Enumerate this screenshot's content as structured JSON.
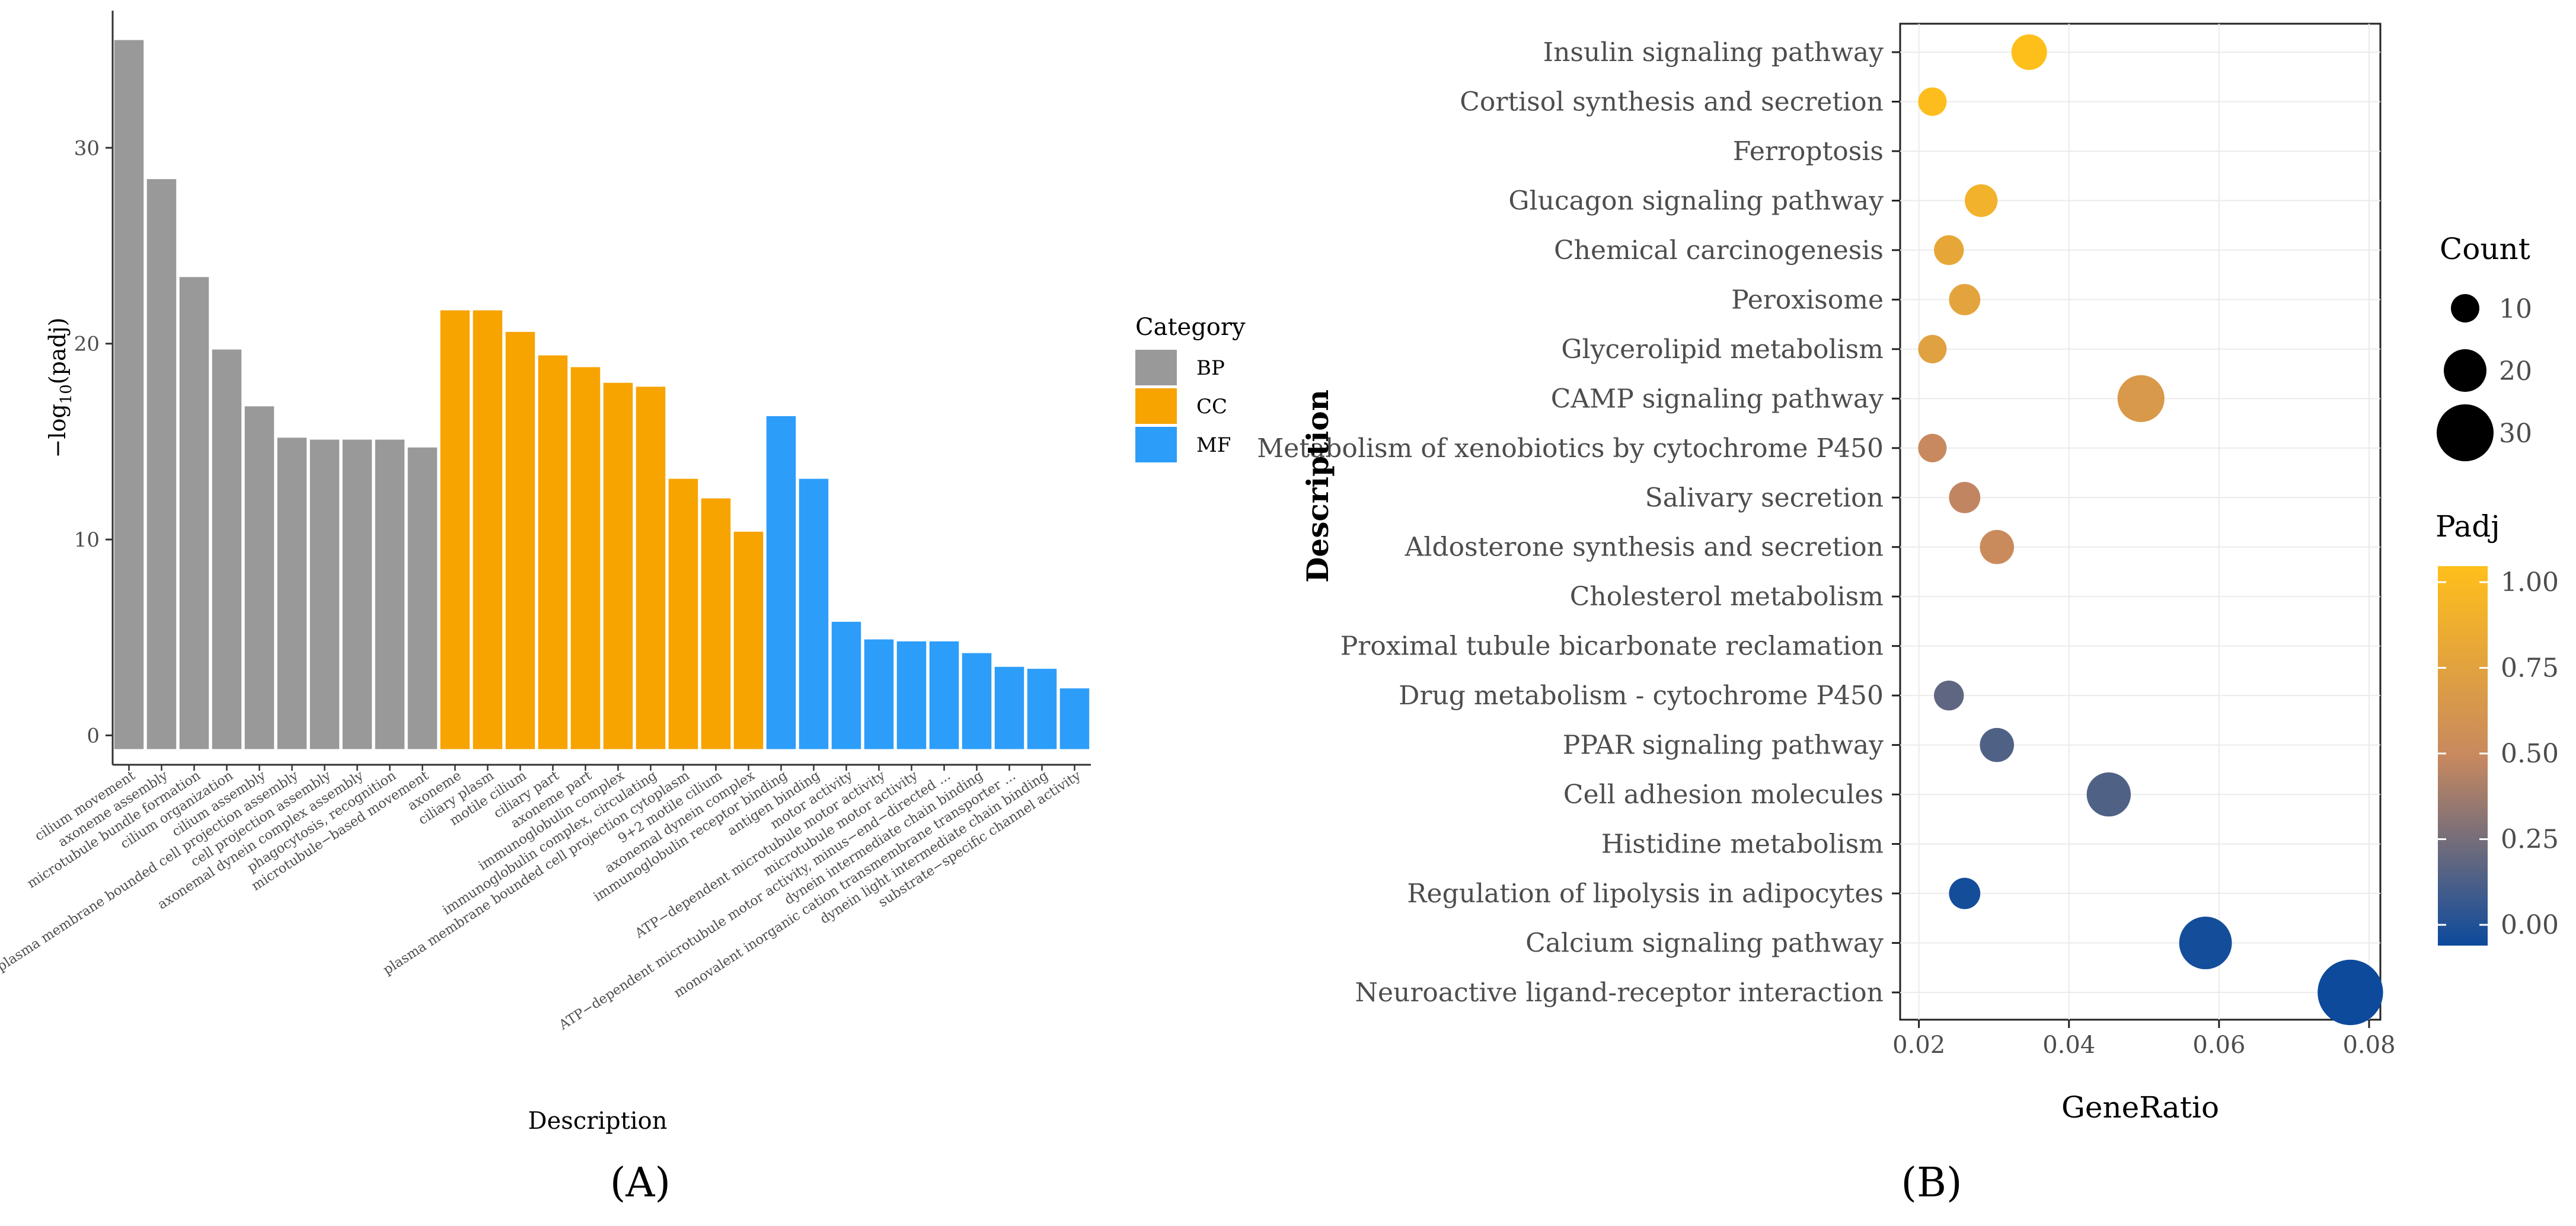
{
  "panel_labels": [
    "(A)",
    "(B)"
  ],
  "chart_data": [
    {
      "type": "bar",
      "panel": "A",
      "title": "",
      "xlabel": "Description",
      "ylabel": "-log10(padj)",
      "ylabel_main": "−log",
      "ylabel_sub": "10",
      "ylabel_tail": "(padj)",
      "ylim": [
        -1.5,
        37
      ],
      "yticks": [
        0,
        10,
        20,
        30
      ],
      "legend_title": "Category",
      "legend_position": "right",
      "categories_legend": [
        {
          "name": "BP",
          "color": "#999999"
        },
        {
          "name": "CC",
          "color": "#f7a300"
        },
        {
          "name": "MF",
          "color": "#2d9dfa"
        }
      ],
      "bars": [
        {
          "label": "cilium movement",
          "value": 35.5,
          "category": "BP"
        },
        {
          "label": "axoneme assembly",
          "value": 28.4,
          "category": "BP"
        },
        {
          "label": "microtubule bundle formation",
          "value": 23.4,
          "category": "BP"
        },
        {
          "label": "cilium organization",
          "value": 19.7,
          "category": "BP"
        },
        {
          "label": "cilium assembly",
          "value": 16.8,
          "category": "BP"
        },
        {
          "label": "plasma membrane bounded cell projection assembly",
          "value": 15.2,
          "category": "BP"
        },
        {
          "label": "cell projection assembly",
          "value": 15.1,
          "category": "BP"
        },
        {
          "label": "axonemal dynein complex assembly",
          "value": 15.1,
          "category": "BP"
        },
        {
          "label": "phagocytosis, recognition",
          "value": 15.1,
          "category": "BP"
        },
        {
          "label": "microtubule−based movement",
          "value": 14.7,
          "category": "BP"
        },
        {
          "label": "axoneme",
          "value": 21.7,
          "category": "CC"
        },
        {
          "label": "ciliary plasm",
          "value": 21.7,
          "category": "CC"
        },
        {
          "label": "motile cilium",
          "value": 20.6,
          "category": "CC"
        },
        {
          "label": "ciliary part",
          "value": 19.4,
          "category": "CC"
        },
        {
          "label": "axoneme part",
          "value": 18.8,
          "category": "CC"
        },
        {
          "label": "immunoglobulin complex",
          "value": 18.0,
          "category": "CC"
        },
        {
          "label": "immunoglobulin complex, circulating",
          "value": 17.8,
          "category": "CC"
        },
        {
          "label": "plasma membrane bounded cell projection cytoplasm",
          "value": 13.1,
          "category": "CC"
        },
        {
          "label": "9+2 motile cilium",
          "value": 12.1,
          "category": "CC"
        },
        {
          "label": "axonemal dynein complex",
          "value": 10.4,
          "category": "CC"
        },
        {
          "label": "immunoglobulin receptor binding",
          "value": 16.3,
          "category": "MF"
        },
        {
          "label": "antigen binding",
          "value": 13.1,
          "category": "MF"
        },
        {
          "label": "motor activity",
          "value": 5.8,
          "category": "MF"
        },
        {
          "label": "ATP−dependent microtubule motor activity",
          "value": 4.9,
          "category": "MF"
        },
        {
          "label": "microtubule motor activity",
          "value": 4.8,
          "category": "MF"
        },
        {
          "label": "ATP−dependent microtubule motor activity, minus−end−directed ...",
          "value": 4.8,
          "category": "MF"
        },
        {
          "label": "dynein intermediate chain binding",
          "value": 4.2,
          "category": "MF"
        },
        {
          "label": "monovalent inorganic cation transmembrane transporter ...",
          "value": 3.5,
          "category": "MF"
        },
        {
          "label": "dynein light intermediate chain binding",
          "value": 3.4,
          "category": "MF"
        },
        {
          "label": "substrate−specific channel activity",
          "value": 2.4,
          "category": "MF"
        }
      ]
    },
    {
      "type": "scatter",
      "panel": "B",
      "title": "",
      "xlabel": "GeneRatio",
      "ylabel": "Description",
      "xlim": [
        0.0175,
        0.0815
      ],
      "xticks": [
        0.02,
        0.04,
        0.06,
        0.08
      ],
      "xtick_labels": [
        "0.02",
        "0.04",
        "0.06",
        "0.08"
      ],
      "size_legend_title": "Count",
      "size_legend": [
        10,
        20,
        30
      ],
      "color_legend_title": "Padj",
      "color_legend_ticks": [
        "1.00",
        "0.75",
        "0.50",
        "0.25",
        "0.00"
      ],
      "color_legend_values": [
        1.0,
        0.75,
        0.5,
        0.25,
        0.0
      ],
      "color_scale": {
        "low": "#0d4a9c",
        "mid": "#c8895f",
        "high": "#ffbf1a"
      },
      "legend_position": "right",
      "terms": [
        {
          "label": "Insulin signaling pathway",
          "gene_ratio": 0.0347,
          "count": 15,
          "padj": 1.0
        },
        {
          "label": "Cortisol synthesis and secretion",
          "gene_ratio": 0.0218,
          "count": 10,
          "padj": 0.98
        },
        {
          "label": "Ferroptosis",
          "gene_ratio": null,
          "count": null,
          "padj": null
        },
        {
          "label": "Glucagon signaling pathway",
          "gene_ratio": 0.0283,
          "count": 13,
          "padj": 0.88
        },
        {
          "label": "Chemical carcinogenesis",
          "gene_ratio": 0.024,
          "count": 11,
          "padj": 0.78
        },
        {
          "label": "Peroxisome",
          "gene_ratio": 0.0261,
          "count": 12,
          "padj": 0.75
        },
        {
          "label": "Glycerolipid metabolism",
          "gene_ratio": 0.0218,
          "count": 10,
          "padj": 0.72
        },
        {
          "label": "CAMP signaling pathway",
          "gene_ratio": 0.0496,
          "count": 23,
          "padj": 0.65
        },
        {
          "label": "Metabolism of xenobiotics by cytochrome P450",
          "gene_ratio": 0.0218,
          "count": 10,
          "padj": 0.5
        },
        {
          "label": "Salivary secretion",
          "gene_ratio": 0.0261,
          "count": 12,
          "padj": 0.48
        },
        {
          "label": "Aldosterone synthesis and secretion",
          "gene_ratio": 0.0304,
          "count": 14,
          "padj": 0.52
        },
        {
          "label": "Cholesterol metabolism",
          "gene_ratio": null,
          "count": null,
          "padj": null
        },
        {
          "label": "Proximal tubule bicarbonate reclamation",
          "gene_ratio": null,
          "count": null,
          "padj": null
        },
        {
          "label": "Drug metabolism - cytochrome P450",
          "gene_ratio": 0.024,
          "count": 11,
          "padj": 0.22
        },
        {
          "label": "PPAR signaling pathway",
          "gene_ratio": 0.0304,
          "count": 14,
          "padj": 0.18
        },
        {
          "label": "Cell  adhesion molecules",
          "gene_ratio": 0.0453,
          "count": 21,
          "padj": 0.18
        },
        {
          "label": "Histidine metabolism",
          "gene_ratio": null,
          "count": null,
          "padj": null
        },
        {
          "label": "Regulation of lipolysis in adipocytes",
          "gene_ratio": 0.0261,
          "count": 12,
          "padj": 0.02
        },
        {
          "label": "Calcium signaling pathway",
          "gene_ratio": 0.0582,
          "count": 27,
          "padj": 0.02
        },
        {
          "label": "Neuroactive ligand-receptor interaction",
          "gene_ratio": 0.0775,
          "count": 36,
          "padj": 0.0
        }
      ]
    }
  ]
}
